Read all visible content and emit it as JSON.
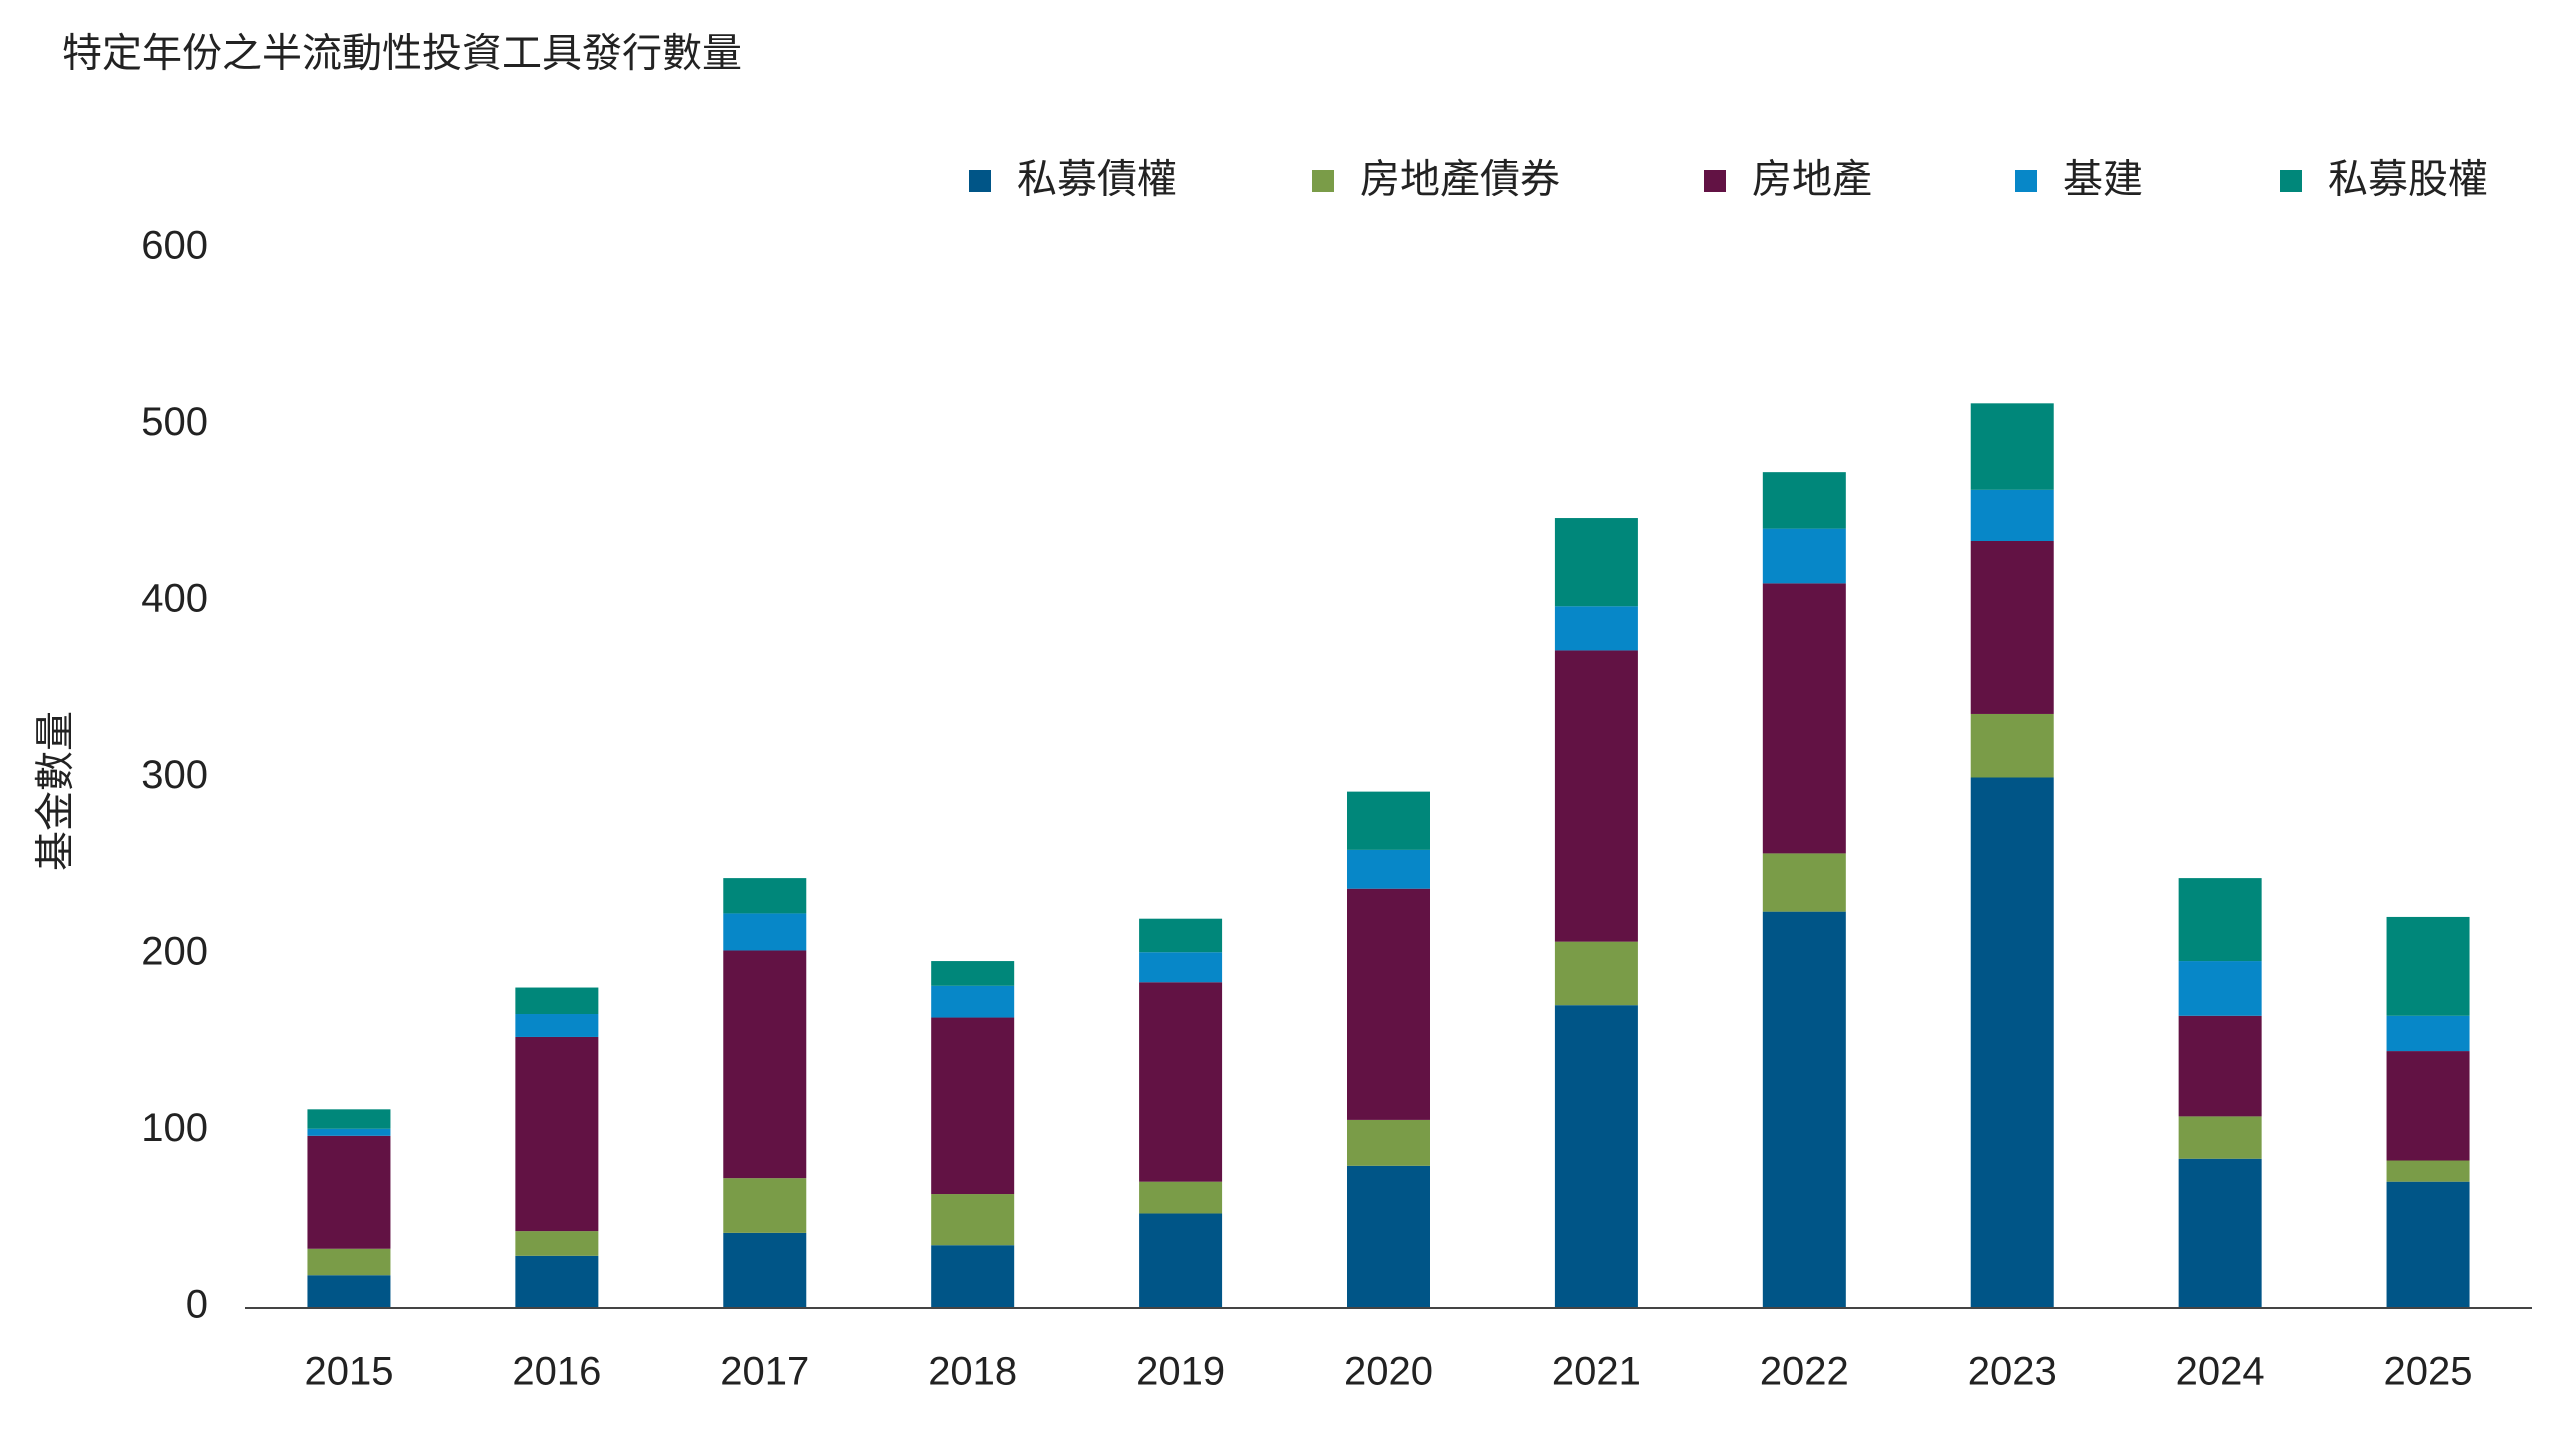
{
  "chart_data": {
    "type": "stacked-bar",
    "title": "特定年份之半流動性投資工具發行數量",
    "y_label": "基金數量",
    "categories": [
      "2015",
      "2016",
      "2017",
      "2018",
      "2019",
      "2020",
      "2021",
      "2022",
      "2023",
      "2024",
      "2025"
    ],
    "series": [
      {
        "name": "私募債權",
        "color": "#005587",
        "values": [
          18,
          29,
          42,
          35,
          53,
          80,
          171,
          224,
          300,
          84,
          71
        ]
      },
      {
        "name": "房地產債券",
        "color": "#7a9c48",
        "values": [
          15,
          14,
          31,
          29,
          18,
          26,
          36,
          33,
          36,
          24,
          12
        ]
      },
      {
        "name": "房地產",
        "color": "#621244",
        "values": [
          64,
          110,
          129,
          100,
          113,
          131,
          165,
          153,
          98,
          57,
          62
        ]
      },
      {
        "name": "基建",
        "color": "#0787c8",
        "values": [
          4,
          13,
          21,
          18,
          17,
          22,
          25,
          31,
          29,
          31,
          20
        ]
      },
      {
        "name": "私募股權",
        "color": "#00877a",
        "values": [
          11,
          15,
          20,
          14,
          19,
          33,
          50,
          32,
          49,
          47,
          56
        ]
      }
    ],
    "ylim": [
      0,
      600
    ],
    "yticks": [
      0,
      100,
      200,
      300,
      400,
      500,
      600
    ],
    "grid": false,
    "legend": "top-right"
  }
}
